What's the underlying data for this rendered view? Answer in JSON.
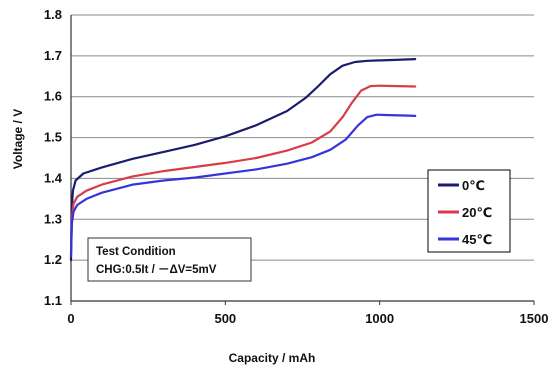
{
  "chart_data": {
    "type": "line",
    "title": "",
    "xlabel": "Capacity / mAh",
    "ylabel": "Voltage / V",
    "xlim": [
      0,
      1500
    ],
    "ylim": [
      1.1,
      1.8
    ],
    "x_ticks": [
      "0",
      "500",
      "1000",
      "1500"
    ],
    "y_ticks": [
      "1.1",
      "1.2",
      "1.3",
      "1.4",
      "1.5",
      "1.6",
      "1.7",
      "1.8"
    ],
    "grid": "horizontal",
    "legend_position": "right",
    "series": [
      {
        "name": "0℃",
        "color": "#1c1c6e",
        "points": [
          [
            0,
            1.2
          ],
          [
            2,
            1.32
          ],
          [
            6,
            1.37
          ],
          [
            15,
            1.395
          ],
          [
            40,
            1.412
          ],
          [
            100,
            1.427
          ],
          [
            200,
            1.448
          ],
          [
            300,
            1.465
          ],
          [
            400,
            1.482
          ],
          [
            500,
            1.503
          ],
          [
            600,
            1.53
          ],
          [
            700,
            1.565
          ],
          [
            760,
            1.597
          ],
          [
            800,
            1.625
          ],
          [
            840,
            1.655
          ],
          [
            880,
            1.676
          ],
          [
            920,
            1.685
          ],
          [
            960,
            1.688
          ],
          [
            1000,
            1.689
          ],
          [
            1050,
            1.69
          ],
          [
            1115,
            1.692
          ]
        ]
      },
      {
        "name": "20℃",
        "color": "#d83c48",
        "points": [
          [
            0,
            1.22
          ],
          [
            3,
            1.3
          ],
          [
            8,
            1.338
          ],
          [
            20,
            1.355
          ],
          [
            50,
            1.37
          ],
          [
            100,
            1.385
          ],
          [
            200,
            1.405
          ],
          [
            300,
            1.418
          ],
          [
            400,
            1.428
          ],
          [
            500,
            1.438
          ],
          [
            600,
            1.45
          ],
          [
            700,
            1.468
          ],
          [
            780,
            1.488
          ],
          [
            840,
            1.515
          ],
          [
            880,
            1.55
          ],
          [
            910,
            1.585
          ],
          [
            940,
            1.615
          ],
          [
            970,
            1.626
          ],
          [
            1000,
            1.627
          ],
          [
            1060,
            1.626
          ],
          [
            1115,
            1.625
          ]
        ]
      },
      {
        "name": "45℃",
        "color": "#3535d8",
        "points": [
          [
            0,
            1.21
          ],
          [
            3,
            1.29
          ],
          [
            8,
            1.318
          ],
          [
            20,
            1.335
          ],
          [
            50,
            1.35
          ],
          [
            100,
            1.365
          ],
          [
            200,
            1.385
          ],
          [
            300,
            1.395
          ],
          [
            400,
            1.402
          ],
          [
            500,
            1.412
          ],
          [
            600,
            1.422
          ],
          [
            700,
            1.436
          ],
          [
            780,
            1.452
          ],
          [
            840,
            1.47
          ],
          [
            890,
            1.495
          ],
          [
            930,
            1.53
          ],
          [
            960,
            1.55
          ],
          [
            990,
            1.556
          ],
          [
            1030,
            1.555
          ],
          [
            1080,
            1.554
          ],
          [
            1115,
            1.553
          ]
        ]
      }
    ],
    "annotation": {
      "line1": "Test Condition",
      "line2": "CHG:0.5It / －ΔV=5mV"
    }
  }
}
